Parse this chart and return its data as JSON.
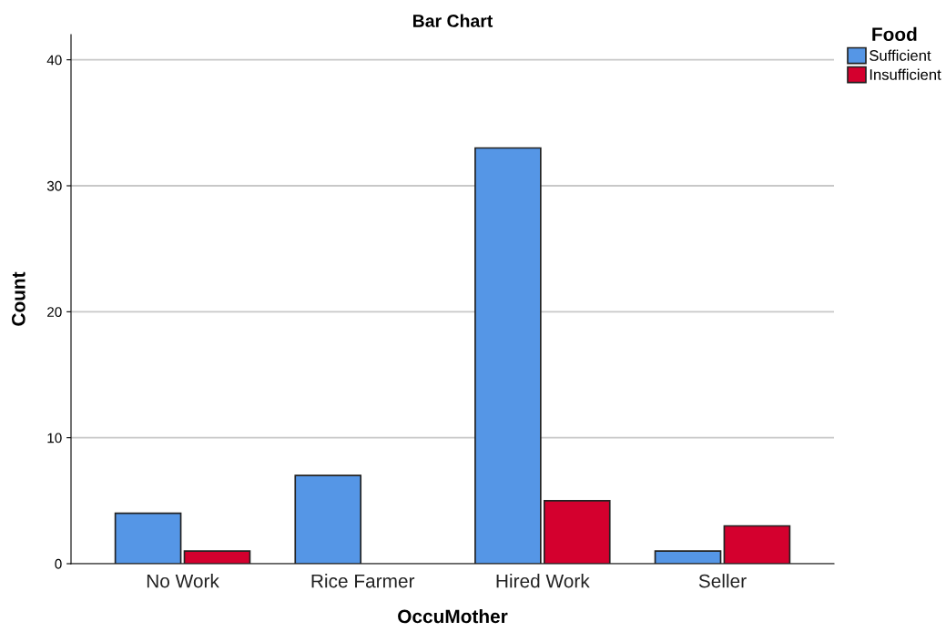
{
  "chart_data": {
    "type": "bar",
    "title": "Bar Chart",
    "xlabel": "OccuMother",
    "ylabel": "Count",
    "legend_title": "Food",
    "categories": [
      "No Work",
      "Rice Farmer",
      "Hired Work",
      "Seller"
    ],
    "series": [
      {
        "name": "Sufficient",
        "color": "#5596e6",
        "values": [
          4,
          7,
          33,
          1
        ]
      },
      {
        "name": "Insufficient",
        "color": "#d4002e",
        "values": [
          1,
          null,
          5,
          3
        ]
      }
    ],
    "ylim": [
      0,
      42
    ],
    "yticks": [
      0,
      10,
      20,
      30,
      40
    ],
    "grid": "y",
    "legend": "top right"
  }
}
